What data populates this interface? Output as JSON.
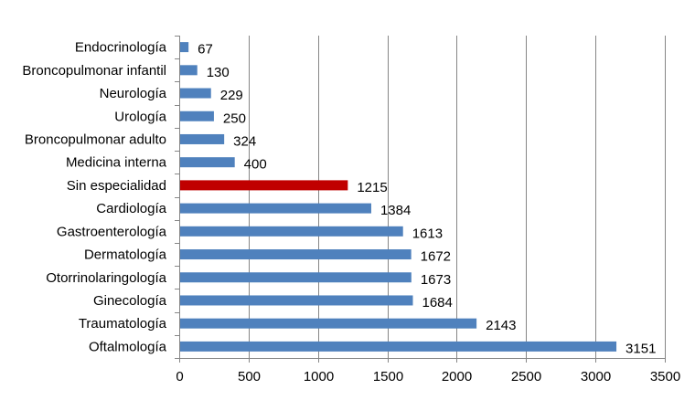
{
  "chart_data": {
    "type": "bar",
    "orientation": "horizontal",
    "categories": [
      "Endocrinología",
      "Broncopulmonar infantil",
      "Neurología",
      "Urología",
      "Broncopulmonar adulto",
      "Medicina interna",
      "Sin especialidad",
      "Cardiología",
      "Gastroenterología",
      "Dermatología",
      "Otorrinolaringología",
      "Ginecología",
      "Traumatología",
      "Oftalmología"
    ],
    "values": [
      67,
      130,
      229,
      250,
      324,
      400,
      1215,
      1384,
      1613,
      1672,
      1673,
      1684,
      2143,
      3151
    ],
    "highlight_category": "Sin especialidad",
    "xlim": [
      0,
      3500
    ],
    "x_ticks": [
      0,
      500,
      1000,
      1500,
      2000,
      2500,
      3000,
      3500
    ],
    "grid": "vertical",
    "legend": "none",
    "title": "",
    "xlabel": "",
    "ylabel": "",
    "colors": {
      "bar": "#4F81BD",
      "highlight": "#C00000",
      "grid": "#868686"
    }
  }
}
